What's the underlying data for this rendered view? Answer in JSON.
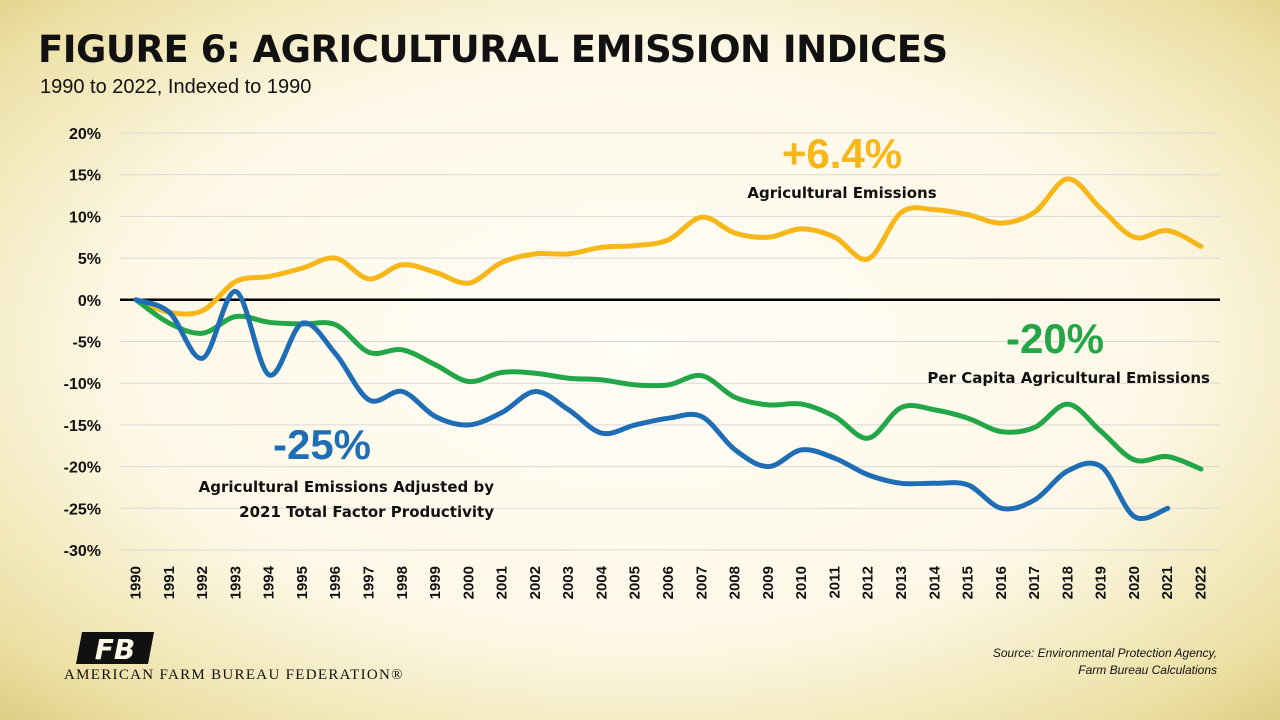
{
  "title": "FIGURE 6: AGRICULTURAL EMISSION INDICES",
  "subtitle": "1990 to 2022, Indexed to 1990",
  "source": "Source: Environmental Protection Agency, Farm Bureau Calculations",
  "organization": "AMERICAN FARM BUREAU FEDERATION®",
  "logo_text": "FB",
  "chart_data": {
    "type": "line",
    "x": [
      1990,
      1991,
      1992,
      1993,
      1994,
      1995,
      1996,
      1997,
      1998,
      1999,
      2000,
      2001,
      2002,
      2003,
      2004,
      2005,
      2006,
      2007,
      2008,
      2009,
      2010,
      2011,
      2012,
      2013,
      2014,
      2015,
      2016,
      2017,
      2018,
      2019,
      2020,
      2021,
      2022
    ],
    "ylim": [
      -30,
      20
    ],
    "yticks": [
      20,
      15,
      10,
      5,
      0,
      -5,
      -10,
      -15,
      -20,
      -25,
      -30
    ],
    "ytick_labels": [
      "20%",
      "15%",
      "10%",
      "5%",
      "0%",
      "-5%",
      "-10%",
      "-15%",
      "-20%",
      "-25%",
      "-30%"
    ],
    "grid": true,
    "series": [
      {
        "color": "#f7b718",
        "values": [
          0,
          -1.5,
          -1.3,
          2.2,
          2.8,
          3.8,
          5.0,
          2.5,
          4.2,
          3.3,
          2.0,
          4.5,
          5.5,
          5.5,
          6.3,
          6.5,
          7.2,
          9.9,
          8.0,
          7.5,
          8.5,
          7.5,
          4.9,
          10.5,
          10.8,
          10.2,
          9.2,
          10.5,
          14.5,
          10.9,
          7.5,
          8.3,
          6.4
        ]
      },
      {
        "color": "#22a648",
        "values": [
          0,
          -2.8,
          -4.0,
          -2.0,
          -2.7,
          -2.9,
          -3.0,
          -6.3,
          -6.0,
          -7.8,
          -9.8,
          -8.7,
          -8.8,
          -9.4,
          -9.6,
          -10.2,
          -10.2,
          -9.1,
          -11.7,
          -12.6,
          -12.5,
          -14.0,
          -16.6,
          -12.9,
          -13.2,
          -14.2,
          -15.8,
          -15.3,
          -12.5,
          -15.8,
          -19.2,
          -18.8,
          -20.3
        ]
      },
      {
        "color": "#1f6db5",
        "values": [
          0,
          -1.5,
          -7.0,
          1.0,
          -9.0,
          -2.8,
          -6.5,
          -12.0,
          -11.0,
          -14.0,
          -15.0,
          -13.5,
          -11.0,
          -13.2,
          -16.0,
          -15.0,
          -14.2,
          -14.0,
          -18.0,
          -20.0,
          -18.0,
          -19.0,
          -21.0,
          -22.0,
          -22.0,
          -22.2,
          -25.0,
          -24.0,
          -20.5,
          -20.0,
          -26.0,
          -25.0,
          null
        ]
      }
    ],
    "annotations": [
      {
        "value": "+6.4%",
        "label": "Agricultural Emissions",
        "color": "#f7b718"
      },
      {
        "value": "-20%",
        "label": "Per Capita Agricultural Emissions",
        "color": "#22a648"
      },
      {
        "value": "-25%",
        "label_lines": [
          "Agricultural Emissions Adjusted by",
          "2021 Total Factor Productivity"
        ],
        "color": "#1f6db5"
      }
    ]
  }
}
